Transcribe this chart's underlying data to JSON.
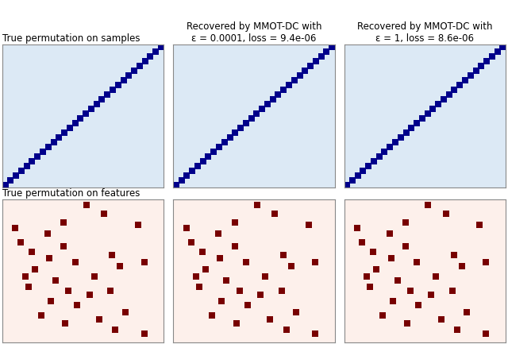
{
  "col0_title_top": "True permutation on samples",
  "col1_title_line1": "Recovered by MMOT-DC with",
  "col1_title_line2": "ε = 0.0001, loss = 9.4e-06",
  "col2_title_line1": "Recovered by MMOT-DC with",
  "col2_title_line2": "ε = 1, loss = 8.6e-06",
  "row1_col0_title": "True permutation on features",
  "n_samples": 30,
  "diag_bg_color": "#dce9f5",
  "diag_marker_color": "#00008b",
  "diag_marker_size": 28,
  "scatter_bg_color": "#fdf0eb",
  "scatter_marker_color": "#780000",
  "scatter_marker_size": 28,
  "scatter_x": [
    0.52,
    0.63,
    0.38,
    0.84,
    0.08,
    0.28,
    0.11,
    0.38,
    0.18,
    0.29,
    0.45,
    0.68,
    0.73,
    0.88,
    0.2,
    0.14,
    0.57,
    0.33,
    0.16,
    0.41,
    0.54,
    0.67,
    0.3,
    0.46,
    0.76,
    0.24,
    0.6,
    0.39,
    0.7,
    0.88
  ],
  "scatter_y": [
    0.96,
    0.9,
    0.84,
    0.82,
    0.8,
    0.76,
    0.7,
    0.67,
    0.63,
    0.59,
    0.56,
    0.61,
    0.53,
    0.56,
    0.51,
    0.46,
    0.46,
    0.43,
    0.39,
    0.36,
    0.33,
    0.36,
    0.29,
    0.26,
    0.21,
    0.19,
    0.16,
    0.13,
    0.09,
    0.06
  ],
  "title_fontsize": 8.5,
  "figsize": [
    6.4,
    4.33
  ],
  "dpi": 100,
  "spine_color": "#888888",
  "spine_lw": 0.8
}
